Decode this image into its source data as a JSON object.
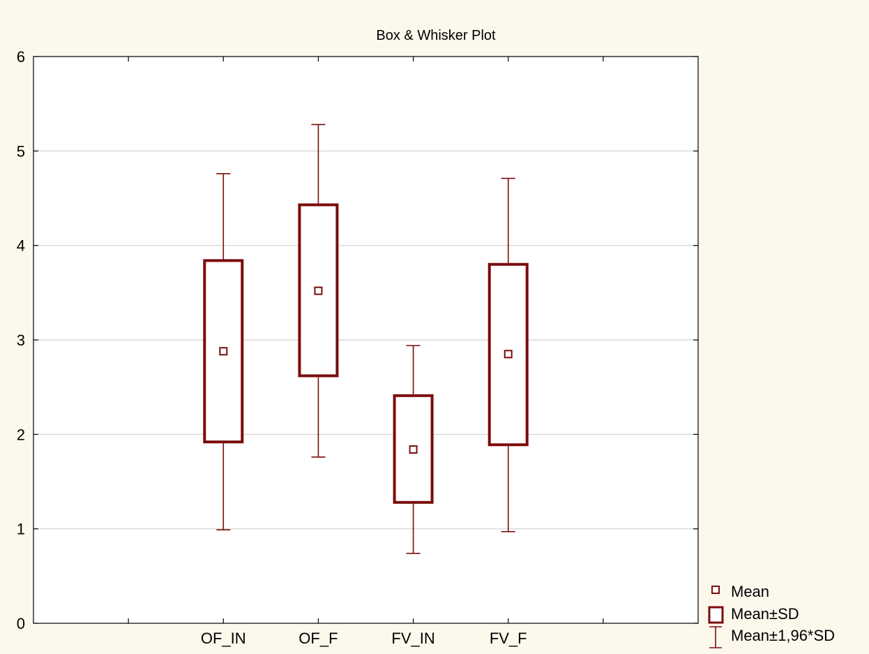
{
  "chart_data": {
    "type": "box",
    "title": "Box & Whisker Plot",
    "xlabel": "",
    "ylabel": "",
    "ylim": [
      0,
      6
    ],
    "yticks": [
      "0",
      "1",
      "2",
      "3",
      "4",
      "5",
      "6"
    ],
    "grid": true,
    "legend_placement": "bottom-right",
    "categories": [
      "OF_IN",
      "OF_F",
      "FV_IN",
      "FV_F"
    ],
    "boxes": [
      {
        "label": "OF_IN",
        "mean": 2.88,
        "box_low": 1.92,
        "box_high": 3.84,
        "whisker_low": 0.99,
        "whisker_high": 4.76
      },
      {
        "label": "OF_F",
        "mean": 3.52,
        "box_low": 2.62,
        "box_high": 4.43,
        "whisker_low": 1.76,
        "whisker_high": 5.28
      },
      {
        "label": "FV_IN",
        "mean": 1.84,
        "box_low": 1.28,
        "box_high": 2.41,
        "whisker_low": 0.74,
        "whisker_high": 2.94
      },
      {
        "label": "FV_F",
        "mean": 2.85,
        "box_low": 1.89,
        "box_high": 3.8,
        "whisker_low": 0.97,
        "whisker_high": 4.71
      }
    ],
    "legend": [
      {
        "symbol": "mean",
        "label": "Mean"
      },
      {
        "symbol": "box",
        "label": "Mean±SD"
      },
      {
        "symbol": "whisker",
        "label": "Mean±1,96*SD"
      }
    ],
    "colors": {
      "series": "#7b0c0c",
      "grid": "#d0d0d0",
      "axis": "#000000",
      "background": "#fdf8ec"
    }
  }
}
